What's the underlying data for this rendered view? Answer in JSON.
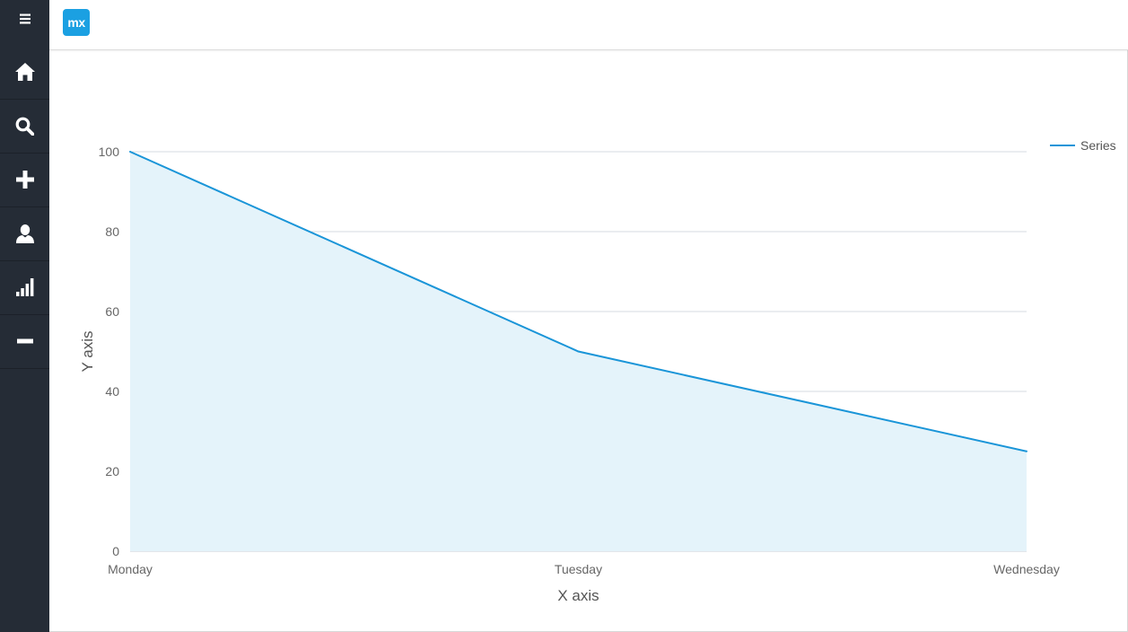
{
  "app": {
    "logo_text": "mx",
    "accent_color": "#1ba0e2",
    "sidebar_color": "#252c36"
  },
  "sidebar": {
    "toggle_icon": "hamburger-icon",
    "items": [
      {
        "name": "home",
        "icon": "home-icon"
      },
      {
        "name": "search",
        "icon": "search-icon"
      },
      {
        "name": "add",
        "icon": "plus-icon"
      },
      {
        "name": "user",
        "icon": "user-icon"
      },
      {
        "name": "stats",
        "icon": "signal-bars-icon"
      },
      {
        "name": "remove",
        "icon": "minus-icon"
      }
    ]
  },
  "chart_data": {
    "type": "area",
    "categories": [
      "Monday",
      "Tuesday",
      "Wednesday"
    ],
    "series": [
      {
        "name": "Series",
        "values": [
          100,
          50,
          25
        ],
        "color": "#1a95d8",
        "fill": "#e4f3fa"
      }
    ],
    "xlabel": "X axis",
    "ylabel": "Y axis",
    "ylim": [
      0,
      100
    ],
    "yticks": [
      0,
      20,
      40,
      60,
      80,
      100
    ],
    "grid": true,
    "legend_position": "top-right"
  }
}
